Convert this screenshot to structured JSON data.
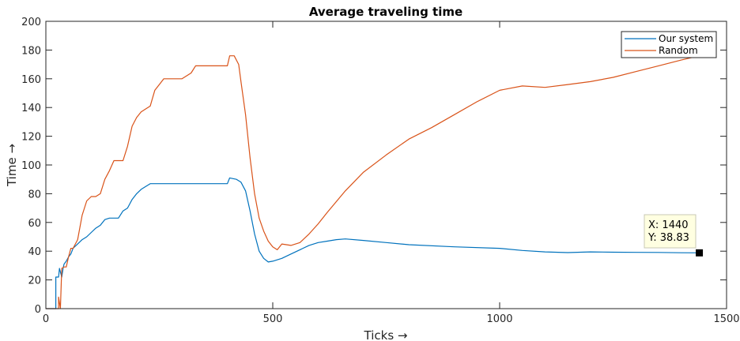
{
  "chart_data": {
    "type": "line",
    "title": "Average traveling time",
    "xlabel": "Ticks →",
    "ylabel": "Time →",
    "xlim": [
      0,
      1500
    ],
    "ylim": [
      0,
      200
    ],
    "xticks": [
      0,
      500,
      1000,
      1500
    ],
    "yticks": [
      0,
      20,
      40,
      60,
      80,
      100,
      120,
      140,
      160,
      180,
      200
    ],
    "grid": false,
    "legend_position": "top-right",
    "series": [
      {
        "name": "Our system",
        "color": "#0072bd",
        "x": [
          0,
          22,
          22,
          28,
          30,
          35,
          38,
          40,
          45,
          50,
          55,
          60,
          70,
          80,
          90,
          100,
          110,
          120,
          130,
          140,
          160,
          170,
          180,
          190,
          200,
          210,
          220,
          230,
          240,
          260,
          300,
          350,
          400,
          405,
          420,
          430,
          440,
          450,
          460,
          470,
          480,
          490,
          500,
          520,
          540,
          560,
          580,
          600,
          620,
          640,
          660,
          700,
          750,
          800,
          900,
          1000,
          1050,
          1100,
          1150,
          1200,
          1250,
          1300,
          1350,
          1400,
          1440
        ],
        "y": [
          0,
          0,
          22,
          22,
          28,
          22,
          28,
          31,
          33,
          36,
          38,
          42,
          45,
          48,
          50,
          53,
          56,
          58,
          62,
          63,
          63,
          68,
          70,
          76,
          80,
          83,
          85,
          87,
          87,
          87,
          87,
          87,
          87,
          91,
          90,
          88,
          82,
          68,
          52,
          40,
          35,
          32.5,
          33,
          35,
          38,
          41,
          44,
          46,
          47,
          48,
          48.5,
          47.5,
          46,
          44.5,
          43,
          42,
          40.5,
          39.5,
          39,
          39.5,
          39.3,
          39.2,
          39.1,
          38.9,
          38.83
        ]
      },
      {
        "name": "Random",
        "color": "#d95319",
        "x": [
          0,
          28,
          28,
          32,
          35,
          40,
          45,
          50,
          55,
          60,
          70,
          80,
          90,
          100,
          110,
          120,
          130,
          140,
          150,
          170,
          180,
          190,
          200,
          210,
          220,
          230,
          240,
          250,
          260,
          280,
          300,
          320,
          330,
          360,
          380,
          400,
          405,
          415,
          425,
          430,
          440,
          450,
          460,
          470,
          480,
          490,
          500,
          510,
          520,
          540,
          560,
          580,
          600,
          620,
          660,
          700,
          750,
          800,
          850,
          900,
          950,
          1000,
          1050,
          1100,
          1150,
          1200,
          1250,
          1300,
          1350,
          1400,
          1440
        ],
        "y": [
          0,
          0,
          8,
          0,
          28,
          29,
          29,
          36,
          42,
          42,
          48,
          65,
          75,
          78,
          78,
          80,
          90,
          96,
          103,
          103,
          113,
          127,
          133,
          137,
          139,
          141,
          152,
          156,
          160,
          160,
          160,
          164,
          169,
          169,
          169,
          169,
          176,
          176,
          170,
          158,
          135,
          105,
          80,
          63,
          54,
          47,
          43,
          41,
          45,
          44,
          46,
          52,
          59,
          67,
          82,
          95,
          107,
          118,
          126,
          135,
          144,
          152,
          155,
          154,
          156,
          158,
          161,
          165,
          169,
          173,
          176
        ]
      }
    ],
    "annotation": {
      "x": 1440,
      "y": 38.83,
      "text_x": "X: 1440",
      "text_y": "Y: 38.83"
    }
  }
}
